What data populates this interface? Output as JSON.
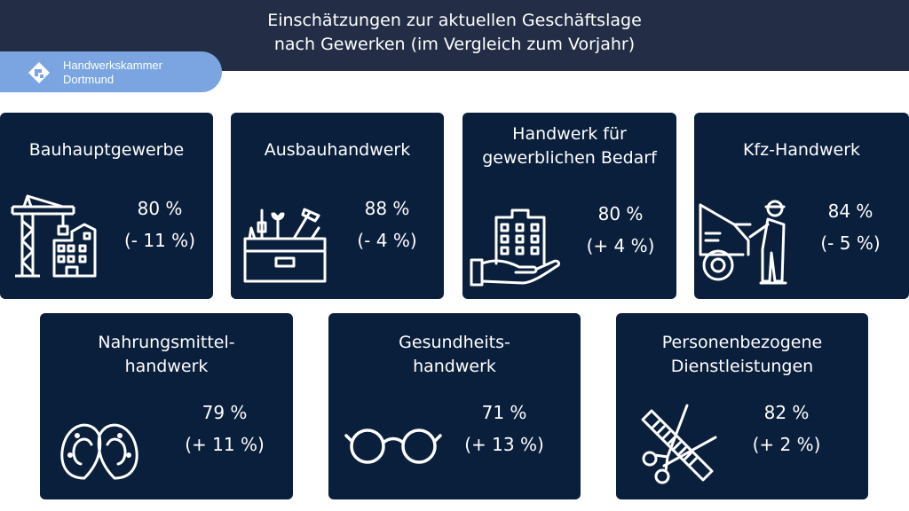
{
  "title": {
    "line1": "Einschätzungen zur aktuellen Geschäftslage",
    "line2": "nach Gewerken (im Vergleich zum Vorjahr)"
  },
  "logo": {
    "line1": "Handwerkskammer",
    "line2": "Dortmund"
  },
  "colors": {
    "header": "#232e46",
    "card": "#0a1f3c",
    "logo_pill": "#7aa5e0",
    "text": "#ffffff"
  },
  "cards": [
    {
      "title_lines": [
        "Bauhauptgewerbe"
      ],
      "value": "80 %",
      "change": "(- 11 %)",
      "icon": "construction-crane-icon"
    },
    {
      "title_lines": [
        "Ausbauhandwerk"
      ],
      "value": "88 %",
      "change": "(- 4 %)",
      "icon": "toolbox-icon"
    },
    {
      "title_lines": [
        "Handwerk für",
        "gewerblichen Bedarf"
      ],
      "value": "80 %",
      "change": "(+ 4 %)",
      "icon": "building-in-hand-icon"
    },
    {
      "title_lines": [
        "Kfz-Handwerk"
      ],
      "value": "84 %",
      "change": "(- 5 %)",
      "icon": "car-mechanic-icon"
    },
    {
      "title_lines": [
        "Nahrungsmittel-",
        "handwerk"
      ],
      "value": "79 %",
      "change": "(+ 11 %)",
      "icon": "pretzel-icon"
    },
    {
      "title_lines": [
        "Gesundheits-",
        "handwerk"
      ],
      "value": "71 %",
      "change": "(+ 13 %)",
      "icon": "glasses-icon"
    },
    {
      "title_lines": [
        "Personenbezogene",
        "Dienstleistungen"
      ],
      "value": "82 %",
      "change": "(+ 2 %)",
      "icon": "comb-scissors-icon"
    }
  ]
}
